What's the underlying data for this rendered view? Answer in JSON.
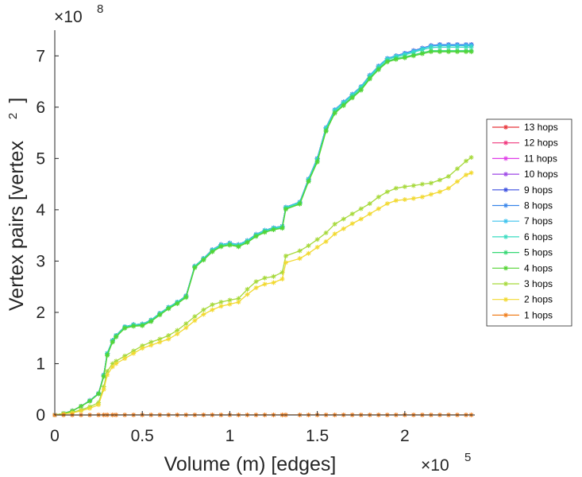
{
  "chart_data": {
    "type": "line",
    "xlabel": "Volume (m) [edges]",
    "ylabel": "Vertex pairs [vertex",
    "ylabel_exp": "2",
    "ylabel_close": "]",
    "x_multiplier": "×10",
    "x_multiplier_exp": "5",
    "y_multiplier": "×10",
    "y_multiplier_exp": "8",
    "xlim": [
      0,
      2.4
    ],
    "ylim": [
      0,
      7.5
    ],
    "xticks": [
      0,
      0.5,
      1,
      1.5,
      2
    ],
    "xtick_labels": [
      "0",
      "0.5",
      "1",
      "1.5",
      "2"
    ],
    "yticks": [
      0,
      1,
      2,
      3,
      4,
      5,
      6,
      7
    ],
    "ytick_labels": [
      "0",
      "1",
      "2",
      "3",
      "4",
      "5",
      "6",
      "7"
    ],
    "legend_position": "right",
    "x": [
      0,
      0.05,
      0.1,
      0.15,
      0.2,
      0.25,
      0.28,
      0.3,
      0.33,
      0.35,
      0.4,
      0.45,
      0.5,
      0.55,
      0.6,
      0.65,
      0.7,
      0.75,
      0.8,
      0.85,
      0.9,
      0.95,
      1.0,
      1.05,
      1.1,
      1.15,
      1.2,
      1.25,
      1.3,
      1.32,
      1.4,
      1.45,
      1.5,
      1.55,
      1.6,
      1.65,
      1.7,
      1.75,
      1.8,
      1.85,
      1.9,
      1.95,
      2.0,
      2.05,
      2.1,
      2.15,
      2.2,
      2.25,
      2.3,
      2.35,
      2.38
    ],
    "series": [
      {
        "name": "13 hops",
        "color": "#e8363a",
        "values": [
          0,
          0.03,
          0.08,
          0.17,
          0.28,
          0.42,
          0.78,
          1.2,
          1.45,
          1.55,
          1.72,
          1.76,
          1.77,
          1.85,
          1.98,
          2.1,
          2.2,
          2.32,
          2.9,
          3.05,
          3.22,
          3.32,
          3.35,
          3.32,
          3.4,
          3.52,
          3.6,
          3.65,
          3.68,
          4.05,
          4.15,
          4.6,
          5.0,
          5.6,
          5.95,
          6.1,
          6.25,
          6.4,
          6.62,
          6.8,
          6.95,
          7.0,
          7.05,
          7.1,
          7.15,
          7.2,
          7.22,
          7.22,
          7.22,
          7.22,
          7.22
        ]
      },
      {
        "name": "12 hops",
        "color": "#f0387e",
        "values": [
          0,
          0.03,
          0.08,
          0.17,
          0.28,
          0.42,
          0.78,
          1.2,
          1.45,
          1.55,
          1.72,
          1.76,
          1.77,
          1.85,
          1.98,
          2.1,
          2.2,
          2.32,
          2.9,
          3.05,
          3.22,
          3.32,
          3.35,
          3.32,
          3.4,
          3.52,
          3.6,
          3.65,
          3.68,
          4.05,
          4.15,
          4.6,
          5.0,
          5.6,
          5.95,
          6.1,
          6.25,
          6.4,
          6.62,
          6.8,
          6.95,
          7.0,
          7.05,
          7.1,
          7.15,
          7.2,
          7.22,
          7.22,
          7.22,
          7.22,
          7.22
        ]
      },
      {
        "name": "11 hops",
        "color": "#e03ee8",
        "values": [
          0,
          0.03,
          0.08,
          0.17,
          0.28,
          0.42,
          0.78,
          1.2,
          1.45,
          1.55,
          1.72,
          1.76,
          1.77,
          1.85,
          1.98,
          2.1,
          2.2,
          2.32,
          2.9,
          3.05,
          3.22,
          3.32,
          3.35,
          3.32,
          3.4,
          3.52,
          3.6,
          3.65,
          3.68,
          4.05,
          4.15,
          4.6,
          5.0,
          5.6,
          5.95,
          6.1,
          6.25,
          6.4,
          6.62,
          6.8,
          6.95,
          7.0,
          7.05,
          7.1,
          7.15,
          7.2,
          7.22,
          7.22,
          7.22,
          7.22,
          7.22
        ]
      },
      {
        "name": "10 hops",
        "color": "#9d47e6",
        "values": [
          0,
          0.03,
          0.08,
          0.17,
          0.28,
          0.42,
          0.78,
          1.2,
          1.45,
          1.55,
          1.72,
          1.76,
          1.77,
          1.85,
          1.98,
          2.1,
          2.2,
          2.32,
          2.9,
          3.05,
          3.22,
          3.32,
          3.35,
          3.32,
          3.4,
          3.52,
          3.6,
          3.65,
          3.68,
          4.05,
          4.15,
          4.6,
          5.0,
          5.6,
          5.95,
          6.1,
          6.25,
          6.4,
          6.62,
          6.8,
          6.95,
          7.0,
          7.05,
          7.1,
          7.15,
          7.2,
          7.22,
          7.22,
          7.22,
          7.22,
          7.22
        ]
      },
      {
        "name": "9 hops",
        "color": "#3b4fe0",
        "values": [
          0,
          0.03,
          0.08,
          0.17,
          0.28,
          0.42,
          0.78,
          1.2,
          1.45,
          1.55,
          1.72,
          1.76,
          1.77,
          1.85,
          1.98,
          2.1,
          2.2,
          2.32,
          2.9,
          3.05,
          3.22,
          3.32,
          3.35,
          3.32,
          3.4,
          3.52,
          3.6,
          3.65,
          3.68,
          4.05,
          4.15,
          4.6,
          5.0,
          5.6,
          5.95,
          6.1,
          6.25,
          6.4,
          6.62,
          6.8,
          6.95,
          7.0,
          7.05,
          7.1,
          7.15,
          7.2,
          7.22,
          7.22,
          7.22,
          7.22,
          7.22
        ]
      },
      {
        "name": "8 hops",
        "color": "#3a86ea",
        "values": [
          0,
          0.03,
          0.08,
          0.17,
          0.28,
          0.42,
          0.78,
          1.2,
          1.45,
          1.55,
          1.72,
          1.76,
          1.77,
          1.85,
          1.98,
          2.1,
          2.2,
          2.32,
          2.9,
          3.05,
          3.22,
          3.32,
          3.35,
          3.32,
          3.4,
          3.52,
          3.6,
          3.65,
          3.68,
          4.05,
          4.15,
          4.6,
          5.0,
          5.6,
          5.95,
          6.1,
          6.25,
          6.4,
          6.62,
          6.8,
          6.95,
          7.0,
          7.05,
          7.1,
          7.15,
          7.2,
          7.22,
          7.22,
          7.22,
          7.22,
          7.22
        ]
      },
      {
        "name": "7 hops",
        "color": "#3cc3ee",
        "values": [
          0,
          0.03,
          0.08,
          0.17,
          0.28,
          0.42,
          0.78,
          1.2,
          1.45,
          1.55,
          1.72,
          1.76,
          1.77,
          1.85,
          1.98,
          2.1,
          2.2,
          2.32,
          2.9,
          3.05,
          3.22,
          3.32,
          3.35,
          3.32,
          3.4,
          3.52,
          3.6,
          3.65,
          3.68,
          4.05,
          4.15,
          4.6,
          5.0,
          5.6,
          5.95,
          6.1,
          6.25,
          6.4,
          6.62,
          6.8,
          6.95,
          7.0,
          7.04,
          7.09,
          7.14,
          7.19,
          7.2,
          7.2,
          7.2,
          7.2,
          7.2
        ]
      },
      {
        "name": "6 hops",
        "color": "#38dcc0",
        "values": [
          0,
          0.03,
          0.08,
          0.17,
          0.28,
          0.42,
          0.78,
          1.2,
          1.45,
          1.55,
          1.72,
          1.76,
          1.77,
          1.85,
          1.98,
          2.1,
          2.2,
          2.32,
          2.9,
          3.05,
          3.21,
          3.31,
          3.34,
          3.31,
          3.39,
          3.51,
          3.59,
          3.64,
          3.67,
          4.04,
          4.14,
          4.58,
          4.98,
          5.58,
          5.93,
          6.08,
          6.23,
          6.38,
          6.6,
          6.78,
          6.93,
          6.98,
          7.02,
          7.07,
          7.12,
          7.16,
          7.17,
          7.17,
          7.17,
          7.17,
          7.17
        ]
      },
      {
        "name": "5 hops",
        "color": "#35d873",
        "values": [
          0,
          0.03,
          0.08,
          0.17,
          0.27,
          0.41,
          0.76,
          1.18,
          1.43,
          1.53,
          1.7,
          1.74,
          1.75,
          1.83,
          1.96,
          2.08,
          2.18,
          2.3,
          2.88,
          3.03,
          3.19,
          3.29,
          3.32,
          3.29,
          3.37,
          3.49,
          3.57,
          3.62,
          3.65,
          4.02,
          4.12,
          4.56,
          4.95,
          5.55,
          5.9,
          6.05,
          6.2,
          6.35,
          6.57,
          6.75,
          6.9,
          6.95,
          6.98,
          7.02,
          7.06,
          7.1,
          7.1,
          7.1,
          7.1,
          7.1,
          7.1
        ]
      },
      {
        "name": "4 hops",
        "color": "#55d435",
        "values": [
          0,
          0.03,
          0.08,
          0.17,
          0.27,
          0.41,
          0.75,
          1.16,
          1.42,
          1.52,
          1.69,
          1.73,
          1.74,
          1.82,
          1.95,
          2.07,
          2.17,
          2.29,
          2.87,
          3.02,
          3.18,
          3.28,
          3.31,
          3.28,
          3.36,
          3.48,
          3.56,
          3.61,
          3.64,
          4.01,
          4.11,
          4.55,
          4.93,
          5.53,
          5.88,
          6.03,
          6.18,
          6.33,
          6.55,
          6.73,
          6.88,
          6.93,
          6.96,
          7.0,
          7.04,
          7.08,
          7.08,
          7.08,
          7.08,
          7.08,
          7.08
        ]
      },
      {
        "name": "3 hops",
        "color": "#a6d93b",
        "values": [
          0,
          0.02,
          0.05,
          0.1,
          0.16,
          0.24,
          0.55,
          0.85,
          1.0,
          1.05,
          1.15,
          1.25,
          1.35,
          1.42,
          1.48,
          1.55,
          1.65,
          1.78,
          1.92,
          2.05,
          2.15,
          2.2,
          2.24,
          2.27,
          2.45,
          2.6,
          2.67,
          2.7,
          2.78,
          3.1,
          3.2,
          3.3,
          3.42,
          3.55,
          3.72,
          3.82,
          3.92,
          4.02,
          4.12,
          4.25,
          4.35,
          4.42,
          4.45,
          4.47,
          4.5,
          4.52,
          4.58,
          4.65,
          4.8,
          4.95,
          5.02
        ]
      },
      {
        "name": "2 hops",
        "color": "#f2d930",
        "values": [
          0,
          0.02,
          0.04,
          0.08,
          0.13,
          0.2,
          0.5,
          0.78,
          0.94,
          1.0,
          1.1,
          1.2,
          1.3,
          1.36,
          1.42,
          1.48,
          1.58,
          1.7,
          1.84,
          1.96,
          2.05,
          2.12,
          2.16,
          2.2,
          2.35,
          2.48,
          2.55,
          2.58,
          2.65,
          2.97,
          3.05,
          3.15,
          3.27,
          3.38,
          3.53,
          3.63,
          3.73,
          3.82,
          3.92,
          4.02,
          4.12,
          4.18,
          4.2,
          4.22,
          4.25,
          4.3,
          4.35,
          4.42,
          4.55,
          4.68,
          4.72
        ]
      },
      {
        "name": "1 hops",
        "color": "#f07f1e",
        "values": [
          0,
          0,
          0,
          0,
          0,
          0.001,
          0.001,
          0.001,
          0.001,
          0.001,
          0.001,
          0.001,
          0.001,
          0.001,
          0.001,
          0.001,
          0.001,
          0.001,
          0.001,
          0.001,
          0.001,
          0.001,
          0.001,
          0.001,
          0.001,
          0.001,
          0.001,
          0.001,
          0.001,
          0.001,
          0.001,
          0.001,
          0.001,
          0.001,
          0.001,
          0.001,
          0.001,
          0.001,
          0.001,
          0.001,
          0.001,
          0.001,
          0.001,
          0.001,
          0.001,
          0.001,
          0.001,
          0.001,
          0.001,
          0.001,
          0.001
        ]
      }
    ]
  }
}
